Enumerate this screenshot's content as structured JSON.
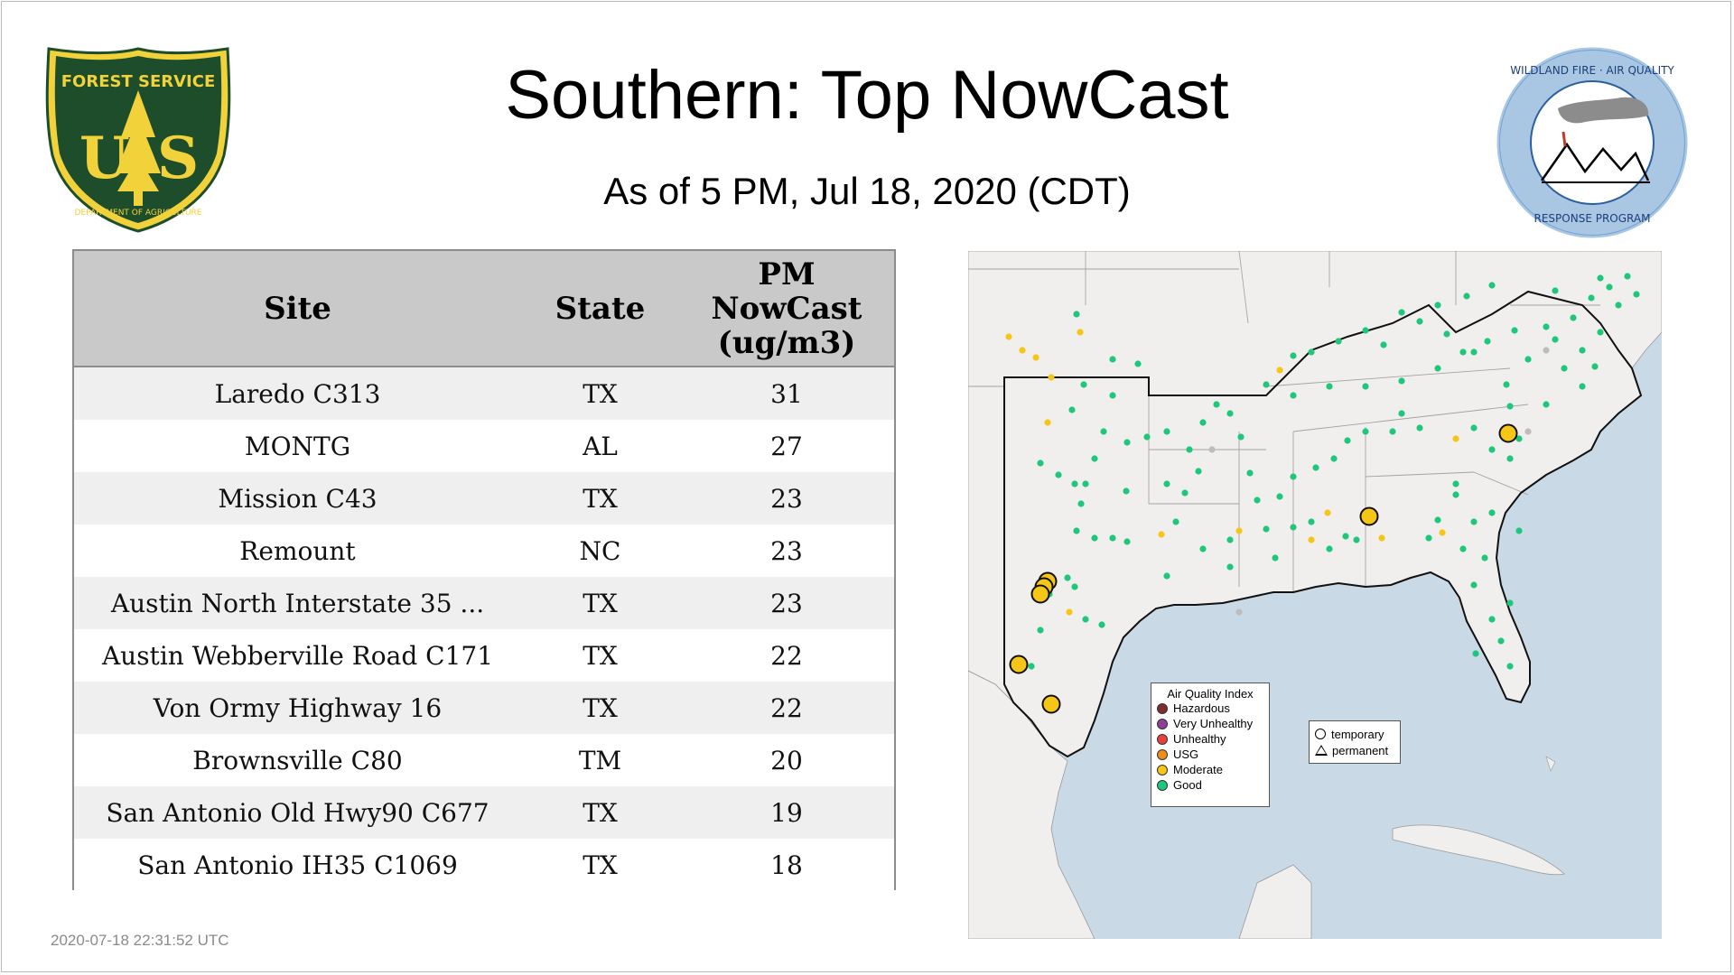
{
  "header": {
    "title": "Southern: Top NowCast",
    "subtitle": "As of  5 PM, Jul 18, 2020 (CDT)"
  },
  "logos": {
    "usfs": {
      "top_text": "FOREST SERVICE",
      "bottom_text": "DEPARTMENT OF AGRICULTURE",
      "letters": "US"
    },
    "wfaq": {
      "top_text": "WILDLAND FIRE · AIR QUALITY",
      "bottom_text": "RESPONSE PROGRAM"
    }
  },
  "table": {
    "headers": [
      "Site",
      "State",
      "PM NowCast (ug/m3)"
    ],
    "header_pm_lines": [
      "PM",
      "NowCast",
      "(ug/m3)"
    ],
    "rows": [
      {
        "site": "Laredo C313",
        "state": "TX",
        "value": "31"
      },
      {
        "site": "MONTG",
        "state": "AL",
        "value": "27"
      },
      {
        "site": "Mission C43",
        "state": "TX",
        "value": "23"
      },
      {
        "site": "Remount",
        "state": "NC",
        "value": "23"
      },
      {
        "site": "Austin North Interstate 35 ...",
        "state": "TX",
        "value": "23"
      },
      {
        "site": "Austin Webberville Road C171",
        "state": "TX",
        "value": "22"
      },
      {
        "site": "Von Ormy Highway 16",
        "state": "TX",
        "value": "22"
      },
      {
        "site": "Brownsville C80",
        "state": "TM",
        "value": "20"
      },
      {
        "site": "San Antonio Old Hwy90 C677",
        "state": "TX",
        "value": "19"
      },
      {
        "site": "San Antonio IH35 C1069",
        "state": "TX",
        "value": "18"
      }
    ]
  },
  "map": {
    "aqi_legend": {
      "title": "Air Quality Index",
      "items": [
        {
          "label": "Hazardous",
          "color": "#7e2d2d"
        },
        {
          "label": "Very Unhealthy",
          "color": "#8f3f97"
        },
        {
          "label": "Unhealthy",
          "color": "#e8413c"
        },
        {
          "label": "USG",
          "color": "#f08c1a"
        },
        {
          "label": "Moderate",
          "color": "#f5c518"
        },
        {
          "label": "Good",
          "color": "#1ec87a"
        }
      ]
    },
    "type_legend": {
      "temporary": "temporary",
      "permanent": "permanent"
    },
    "colors": {
      "good": "#1ec87a",
      "moderate": "#f5c518",
      "no_data": "#bdbdbd",
      "water": "#c9d9e6",
      "land": "#f2f0ee"
    }
  },
  "footer": {
    "timestamp": "2020-07-18 22:31:52 UTC"
  }
}
